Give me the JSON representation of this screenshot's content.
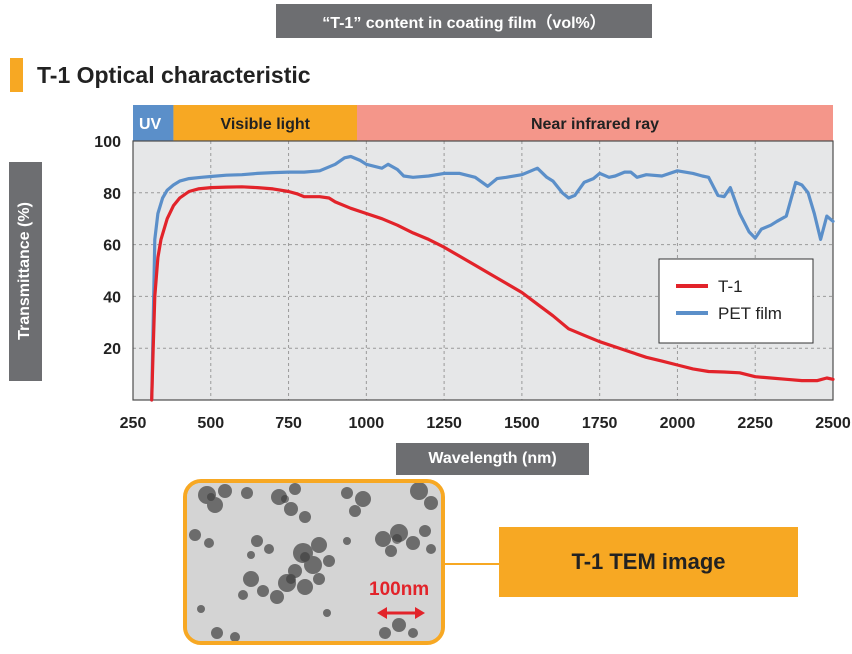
{
  "header": {
    "banner": "“T-1” content in coating film（vol%）",
    "section_title": "T-1 Optical characteristic"
  },
  "chart_data": {
    "type": "line",
    "xlabel": "Wavelength (nm)",
    "ylabel": "Transmittance (%)",
    "xlim": [
      250,
      2500
    ],
    "ylim": [
      0,
      100
    ],
    "x_ticks": [
      250,
      500,
      750,
      1000,
      1250,
      1500,
      1750,
      2000,
      2250,
      2500
    ],
    "y_ticks": [
      20,
      40,
      60,
      80,
      100
    ],
    "grid": true,
    "legend_position": "right",
    "regions": [
      {
        "label": "UV",
        "from": 250,
        "to": 380,
        "color": "#5b8fc9"
      },
      {
        "label": "Visible light",
        "from": 380,
        "to": 970,
        "color": "#f7a823"
      },
      {
        "label": "Near infrared ray",
        "from": 970,
        "to": 2500,
        "color": "#f4968a"
      }
    ],
    "series": [
      {
        "name": "T-1",
        "color": "#e2232a",
        "x": [
          310,
          315,
          320,
          330,
          340,
          360,
          380,
          400,
          430,
          460,
          500,
          550,
          600,
          650,
          700,
          750,
          780,
          800,
          850,
          880,
          900,
          950,
          1000,
          1050,
          1100,
          1150,
          1200,
          1250,
          1300,
          1350,
          1400,
          1450,
          1500,
          1550,
          1600,
          1650,
          1700,
          1750,
          1800,
          1850,
          1900,
          1950,
          2000,
          2050,
          2100,
          2150,
          2200,
          2250,
          2300,
          2350,
          2400,
          2450,
          2480,
          2500
        ],
        "y": [
          0,
          20,
          40,
          55,
          62,
          70,
          75,
          78,
          80.5,
          81.5,
          82,
          82.2,
          82.3,
          82,
          81.5,
          80.5,
          79.5,
          78.5,
          78.5,
          78,
          76.5,
          74,
          72,
          70,
          67.5,
          64.5,
          62,
          59,
          55.5,
          52,
          48.5,
          45,
          41.5,
          37,
          32.5,
          27.5,
          25,
          22.5,
          20.5,
          18.5,
          16.5,
          15,
          13.5,
          12,
          11,
          10.8,
          10.5,
          9,
          8.5,
          8,
          7.5,
          7.5,
          8.5,
          8
        ]
      },
      {
        "name": "PET film",
        "color": "#5b8fc9",
        "x": [
          310,
          315,
          320,
          330,
          345,
          360,
          380,
          400,
          430,
          470,
          500,
          550,
          600,
          650,
          700,
          750,
          800,
          850,
          900,
          930,
          950,
          980,
          1000,
          1050,
          1070,
          1100,
          1120,
          1150,
          1200,
          1250,
          1300,
          1350,
          1390,
          1420,
          1450,
          1500,
          1530,
          1550,
          1580,
          1600,
          1630,
          1650,
          1670,
          1700,
          1730,
          1750,
          1780,
          1800,
          1830,
          1850,
          1870,
          1900,
          1950,
          2000,
          2050,
          2080,
          2100,
          2130,
          2150,
          2170,
          2200,
          2230,
          2250,
          2270,
          2300,
          2320,
          2350,
          2380,
          2400,
          2420,
          2440,
          2460,
          2480,
          2500
        ],
        "y": [
          0,
          30,
          62,
          72,
          78,
          81,
          83,
          84.5,
          85.5,
          86,
          86.3,
          86.8,
          87,
          87.5,
          87.8,
          88,
          88,
          88.5,
          91,
          93.5,
          94,
          92.5,
          91,
          89.5,
          91,
          89,
          86.5,
          86,
          86.5,
          87.5,
          87.5,
          86,
          82.5,
          85.5,
          86,
          87,
          88.5,
          89.5,
          86,
          84.5,
          80,
          78,
          79,
          84,
          85.5,
          87.5,
          86,
          86.5,
          88,
          88,
          86,
          87,
          86.5,
          88.5,
          87.5,
          86.5,
          86,
          79,
          78.5,
          82,
          72,
          65,
          62.5,
          66,
          67.5,
          69,
          71,
          84,
          83,
          80,
          72,
          62,
          71,
          69
        ]
      }
    ]
  },
  "tem": {
    "scale_label": "100nm",
    "caption": "T-1 TEM image"
  }
}
